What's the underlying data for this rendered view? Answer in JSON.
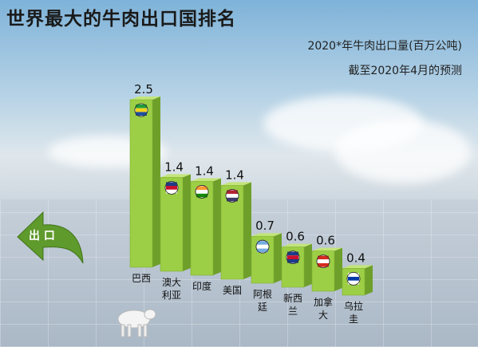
{
  "title": "世界最大的牛肉出口国排名",
  "subtitle": "2020*年牛肉出口量(百万公吨)",
  "note": "截至2020年4月的预测",
  "arrow_label": "出 口",
  "colors": {
    "bar_front": "#9ccf45",
    "bar_side": "#6e9f2a",
    "bar_top": "#c3e57a",
    "arrow": "#5f9a2c"
  },
  "chart_data": {
    "type": "bar",
    "title": "世界最大的牛肉出口国排名",
    "ylabel": "2020*年牛肉出口量(百万公吨)",
    "categories": [
      "巴西",
      "澳大利亚",
      "印度",
      "美国",
      "阿根廷",
      "新西兰",
      "加拿大",
      "乌拉圭"
    ],
    "category_lines": [
      [
        "巴西"
      ],
      [
        "澳大",
        "利亚"
      ],
      [
        "印度"
      ],
      [
        "美国"
      ],
      [
        "阿根",
        "廷"
      ],
      [
        "新西",
        "兰"
      ],
      [
        "加拿",
        "大"
      ],
      [
        "乌拉",
        "圭"
      ]
    ],
    "values": [
      2.5,
      1.4,
      1.4,
      1.4,
      0.7,
      0.6,
      0.6,
      0.4
    ],
    "value_labels": [
      "2.5",
      "1.4",
      "1.4",
      "1.4",
      "0.7",
      "0.6",
      "0.6",
      "0.4"
    ],
    "flags": [
      "brazil-flag-icon",
      "australia-flag-icon",
      "india-flag-icon",
      "usa-flag-icon",
      "argentina-flag-icon",
      "new-zealand-flag-icon",
      "canada-flag-icon",
      "uruguay-flag-icon"
    ],
    "ylim": [
      0,
      2.5
    ],
    "grid": false,
    "legend": "none"
  }
}
